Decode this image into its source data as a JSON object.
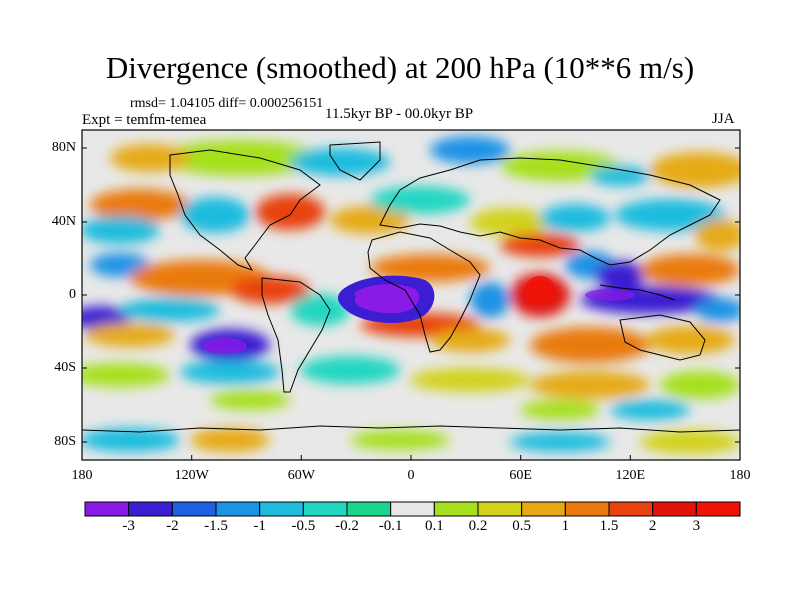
{
  "header": {
    "title": "Divergence (smoothed) at 200 hPa (10**6 m/s)",
    "stats": "rmsd= 1.04105 diff= 0.000256151",
    "experiment": "Expt = temfm-temea",
    "period": "11.5kyr BP - 00.0kyr BP",
    "season": "JJA"
  },
  "axes": {
    "y_ticks": [
      "80N",
      "40N",
      "0",
      "40S",
      "80S"
    ],
    "x_ticks": [
      "180",
      "120W",
      "60W",
      "0",
      "60E",
      "120E",
      "180"
    ]
  },
  "colorbar": {
    "labels": [
      "-3",
      "-2",
      "-1.5",
      "-1",
      "-0.5",
      "-0.2",
      "-0.1",
      "0.1",
      "0.2",
      "0.5",
      "1",
      "1.5",
      "2",
      "3"
    ],
    "colors": [
      "#8a1ae6",
      "#3b1ed2",
      "#1f5fe0",
      "#1d93e6",
      "#1fbcde",
      "#22d6c2",
      "#19d68c",
      "#e8e8e8",
      "#a6e01e",
      "#d2d21a",
      "#e6aa14",
      "#ea7a10",
      "#e8420e",
      "#e0140c",
      "#f01208"
    ]
  },
  "colors": {
    "land_outline": "#000000",
    "background": "#e8e8e8"
  }
}
